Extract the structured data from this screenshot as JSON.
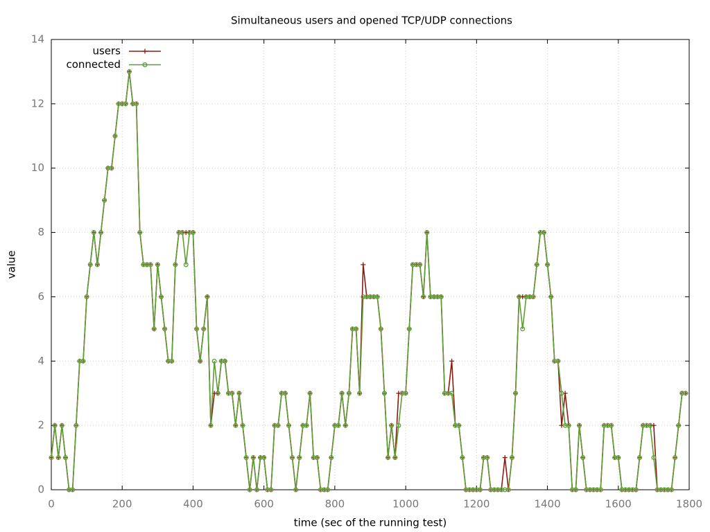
{
  "chart_data": {
    "type": "line",
    "title": "Simultaneous users and opened TCP/UDP connections",
    "xlabel": "time (sec of the running test)",
    "ylabel": "value",
    "x": [
      0,
      10,
      20,
      30,
      40,
      50,
      60,
      70,
      80,
      90,
      100,
      110,
      120,
      130,
      140,
      150,
      160,
      170,
      180,
      190,
      200,
      210,
      220,
      230,
      240,
      250,
      260,
      270,
      280,
      290,
      300,
      310,
      320,
      330,
      340,
      350,
      360,
      370,
      380,
      390,
      400,
      410,
      420,
      430,
      440,
      450,
      460,
      470,
      480,
      490,
      500,
      510,
      520,
      530,
      540,
      550,
      560,
      570,
      580,
      590,
      600,
      610,
      620,
      630,
      640,
      650,
      660,
      670,
      680,
      690,
      700,
      710,
      720,
      730,
      740,
      750,
      760,
      770,
      780,
      790,
      800,
      810,
      820,
      830,
      840,
      850,
      860,
      870,
      880,
      890,
      900,
      910,
      920,
      930,
      940,
      950,
      960,
      970,
      980,
      990,
      1000,
      1010,
      1020,
      1030,
      1040,
      1050,
      1060,
      1070,
      1080,
      1090,
      1100,
      1110,
      1120,
      1130,
      1140,
      1150,
      1160,
      1170,
      1180,
      1190,
      1200,
      1210,
      1220,
      1230,
      1240,
      1250,
      1260,
      1270,
      1280,
      1290,
      1300,
      1310,
      1320,
      1330,
      1340,
      1350,
      1360,
      1370,
      1380,
      1390,
      1400,
      1410,
      1420,
      1430,
      1440,
      1450,
      1460,
      1470,
      1480,
      1490,
      1500,
      1510,
      1520,
      1530,
      1540,
      1550,
      1560,
      1570,
      1580,
      1590,
      1600,
      1610,
      1620,
      1630,
      1640,
      1650,
      1660,
      1670,
      1680,
      1690,
      1700,
      1710,
      1720,
      1730,
      1740,
      1750,
      1760,
      1770,
      1780,
      1790
    ],
    "series": [
      {
        "name": "users",
        "color": "#8b1a0e",
        "marker": "plus",
        "values": [
          1,
          2,
          1,
          2,
          1,
          0,
          0,
          2,
          4,
          4,
          6,
          7,
          8,
          7,
          8,
          9,
          10,
          10,
          11,
          12,
          12,
          12,
          13,
          12,
          12,
          8,
          7,
          7,
          7,
          5,
          7,
          6,
          5,
          4,
          4,
          7,
          8,
          8,
          8,
          8,
          8,
          5,
          4,
          5,
          6,
          2,
          3,
          3,
          4,
          4,
          3,
          3,
          2,
          3,
          2,
          1,
          0,
          1,
          0,
          1,
          1,
          0,
          0,
          2,
          2,
          3,
          3,
          2,
          1,
          0,
          1,
          2,
          2,
          3,
          1,
          1,
          0,
          0,
          0,
          1,
          2,
          2,
          3,
          2,
          3,
          5,
          5,
          3,
          7,
          6,
          6,
          6,
          6,
          5,
          3,
          1,
          2,
          1,
          3,
          3,
          3,
          5,
          7,
          7,
          7,
          6,
          8,
          6,
          6,
          6,
          6,
          3,
          3,
          4,
          2,
          2,
          1,
          0,
          0,
          0,
          0,
          0,
          1,
          1,
          0,
          0,
          0,
          0,
          1,
          0,
          1,
          3,
          6,
          6,
          6,
          6,
          6,
          7,
          8,
          8,
          7,
          6,
          4,
          4,
          2,
          3,
          2,
          0,
          0,
          2,
          1,
          0,
          0,
          0,
          0,
          0,
          2,
          2,
          2,
          1,
          1,
          0,
          0,
          0,
          0,
          0,
          1,
          2,
          2,
          2,
          2,
          0,
          0,
          0,
          0,
          0,
          1,
          2,
          3,
          3
        ]
      },
      {
        "name": "connected",
        "color": "#5e9c36",
        "marker": "circle",
        "values": [
          1,
          2,
          1,
          2,
          1,
          0,
          0,
          2,
          4,
          4,
          6,
          7,
          8,
          7,
          8,
          9,
          10,
          10,
          11,
          12,
          12,
          12,
          13,
          12,
          12,
          8,
          7,
          7,
          7,
          5,
          7,
          6,
          5,
          4,
          4,
          7,
          8,
          8,
          7,
          8,
          8,
          5,
          4,
          5,
          6,
          2,
          4,
          3,
          4,
          4,
          3,
          3,
          2,
          3,
          2,
          1,
          0,
          1,
          0,
          1,
          1,
          0,
          0,
          2,
          2,
          3,
          3,
          2,
          1,
          0,
          1,
          2,
          2,
          3,
          1,
          1,
          0,
          0,
          0,
          1,
          2,
          2,
          3,
          2,
          3,
          5,
          5,
          3,
          6,
          6,
          6,
          6,
          6,
          5,
          3,
          1,
          2,
          1,
          2,
          3,
          3,
          5,
          7,
          7,
          7,
          6,
          8,
          6,
          6,
          6,
          6,
          3,
          3,
          3,
          2,
          2,
          1,
          0,
          0,
          0,
          0,
          0,
          1,
          1,
          0,
          0,
          0,
          0,
          0,
          0,
          1,
          3,
          6,
          5,
          6,
          6,
          6,
          7,
          8,
          8,
          7,
          6,
          4,
          4,
          3,
          2,
          2,
          0,
          0,
          2,
          1,
          0,
          0,
          0,
          0,
          0,
          2,
          2,
          2,
          1,
          1,
          0,
          0,
          0,
          0,
          0,
          1,
          2,
          2,
          2,
          1,
          0,
          0,
          0,
          0,
          0,
          1,
          2,
          3,
          3
        ]
      }
    ],
    "xlim": [
      0,
      1800
    ],
    "xticks": [
      0,
      200,
      400,
      600,
      800,
      1000,
      1200,
      1400,
      1600,
      1800
    ],
    "ylim": [
      0,
      14
    ],
    "yticks": [
      0,
      2,
      4,
      6,
      8,
      10,
      12,
      14
    ],
    "grid": true,
    "legend": "upper left"
  }
}
